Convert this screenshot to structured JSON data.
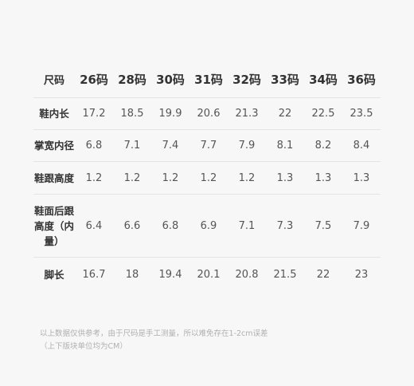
{
  "table": {
    "corner_label": "尺码",
    "sizes": [
      "26码",
      "28码",
      "30码",
      "31码",
      "32码",
      "33码",
      "34码",
      "36码"
    ],
    "rows": [
      {
        "label": "鞋内长",
        "values": [
          "17.2",
          "18.5",
          "19.9",
          "20.6",
          "21.3",
          "22",
          "22.5",
          "23.5"
        ]
      },
      {
        "label": "掌宽内径",
        "values": [
          "6.8",
          "7.1",
          "7.4",
          "7.7",
          "7.9",
          "8.1",
          "8.2",
          "8.4"
        ]
      },
      {
        "label": "鞋跟高度",
        "values": [
          "1.2",
          "1.2",
          "1.2",
          "1.2",
          "1.2",
          "1.3",
          "1.3",
          "1.3"
        ]
      },
      {
        "label": "鞋面后跟高度（内量）",
        "values": [
          "6.4",
          "6.6",
          "6.8",
          "6.9",
          "7.1",
          "7.3",
          "7.5",
          "7.9"
        ]
      },
      {
        "label": "脚长",
        "values": [
          "16.7",
          "18",
          "19.4",
          "20.1",
          "20.8",
          "21.5",
          "22",
          "23"
        ]
      }
    ]
  },
  "notes": {
    "line1": "以上数据仅供参考，由于尺码是手工测量，所以难免存在1-2cm误差",
    "line2": "（上下版块单位均为CM）"
  }
}
